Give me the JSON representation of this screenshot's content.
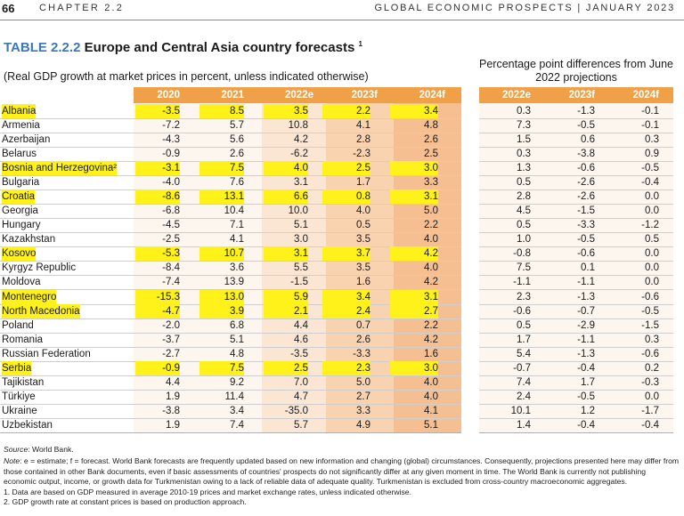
{
  "header": {
    "page_number": "66",
    "chapter": "CHAPTER 2.2",
    "publication": "GLOBAL ECONOMIC PROSPECTS | JANUARY 2023"
  },
  "table": {
    "label": "TABLE 2.2.2",
    "title": "Europe and Central Asia country forecasts",
    "title_footnote": "1",
    "subtitle": "(Real GDP growth at market prices in percent, unless indicated otherwise)",
    "diff_title": "Percentage point differences from June 2022 projections",
    "columns": [
      "2020",
      "2021",
      "2022e",
      "2023f",
      "2024f"
    ],
    "diff_columns": [
      "2022e",
      "2023f",
      "2024f"
    ],
    "highlight_color": "#fff11a",
    "rows": [
      {
        "country": "Albania",
        "values": [
          "-3.5",
          "8.5",
          "3.5",
          "2.2",
          "3.4"
        ],
        "diff": [
          "0.3",
          "-1.3",
          "-0.1"
        ],
        "highlighted": true
      },
      {
        "country": "Armenia",
        "values": [
          "-7.2",
          "5.7",
          "10.8",
          "4.1",
          "4.8"
        ],
        "diff": [
          "7.3",
          "-0.5",
          "-0.1"
        ],
        "highlighted": false
      },
      {
        "country": "Azerbaijan",
        "values": [
          "-4.3",
          "5.6",
          "4.2",
          "2.8",
          "2.6"
        ],
        "diff": [
          "1.5",
          "0.6",
          "0.3"
        ],
        "highlighted": false
      },
      {
        "country": "Belarus",
        "values": [
          "-0.9",
          "2.6",
          "-6.2",
          "-2.3",
          "2.5"
        ],
        "diff": [
          "0.3",
          "-3.8",
          "0.9"
        ],
        "highlighted": false
      },
      {
        "country": "Bosnia and Herzegovina²",
        "values": [
          "-3.1",
          "7.5",
          "4.0",
          "2.5",
          "3.0"
        ],
        "diff": [
          "1.3",
          "-0.6",
          "-0.5"
        ],
        "highlighted": true
      },
      {
        "country": "Bulgaria",
        "values": [
          "-4.0",
          "7.6",
          "3.1",
          "1.7",
          "3.3"
        ],
        "diff": [
          "0.5",
          "-2.6",
          "-0.4"
        ],
        "highlighted": false
      },
      {
        "country": "Croatia",
        "values": [
          "-8.6",
          "13.1",
          "6.6",
          "0.8",
          "3.1"
        ],
        "diff": [
          "2.8",
          "-2.6",
          "0.0"
        ],
        "highlighted": true
      },
      {
        "country": "Georgia",
        "values": [
          "-6.8",
          "10.4",
          "10.0",
          "4.0",
          "5.0"
        ],
        "diff": [
          "4.5",
          "-1.5",
          "0.0"
        ],
        "highlighted": false
      },
      {
        "country": "Hungary",
        "values": [
          "-4.5",
          "7.1",
          "5.1",
          "0.5",
          "2.2"
        ],
        "diff": [
          "0.5",
          "-3.3",
          "-1.2"
        ],
        "highlighted": false
      },
      {
        "country": "Kazakhstan",
        "values": [
          "-2.5",
          "4.1",
          "3.0",
          "3.5",
          "4.0"
        ],
        "diff": [
          "1.0",
          "-0.5",
          "0.5"
        ],
        "highlighted": false
      },
      {
        "country": "Kosovo",
        "values": [
          "-5.3",
          "10.7",
          "3.1",
          "3.7",
          "4.2"
        ],
        "diff": [
          "-0.8",
          "-0.6",
          "0.0"
        ],
        "highlighted": true
      },
      {
        "country": "Kyrgyz Republic",
        "values": [
          "-8.4",
          "3.6",
          "5.5",
          "3.5",
          "4.0"
        ],
        "diff": [
          "7.5",
          "0.1",
          "0.0"
        ],
        "highlighted": false
      },
      {
        "country": "Moldova",
        "values": [
          "-7.4",
          "13.9",
          "-1.5",
          "1.6",
          "4.2"
        ],
        "diff": [
          "-1.1",
          "-1.1",
          "0.0"
        ],
        "highlighted": false
      },
      {
        "country": "Montenegro",
        "values": [
          "-15.3",
          "13.0",
          "5.9",
          "3.4",
          "3.1"
        ],
        "diff": [
          "2.3",
          "-1.3",
          "-0.6"
        ],
        "highlighted": true
      },
      {
        "country": "North Macedonia",
        "values": [
          "-4.7",
          "3.9",
          "2.1",
          "2.4",
          "2.7"
        ],
        "diff": [
          "-0.6",
          "-0.7",
          "-0.5"
        ],
        "highlighted": true
      },
      {
        "country": "Poland",
        "values": [
          "-2.0",
          "6.8",
          "4.4",
          "0.7",
          "2.2"
        ],
        "diff": [
          "0.5",
          "-2.9",
          "-1.5"
        ],
        "highlighted": false
      },
      {
        "country": "Romania",
        "values": [
          "-3.7",
          "5.1",
          "4.6",
          "2.6",
          "4.2"
        ],
        "diff": [
          "1.7",
          "-1.1",
          "0.3"
        ],
        "highlighted": false
      },
      {
        "country": "Russian Federation",
        "values": [
          "-2.7",
          "4.8",
          "-3.5",
          "-3.3",
          "1.6"
        ],
        "diff": [
          "5.4",
          "-1.3",
          "-0.6"
        ],
        "highlighted": false
      },
      {
        "country": "Serbia",
        "values": [
          "-0.9",
          "7.5",
          "2.5",
          "2.3",
          "3.0"
        ],
        "diff": [
          "-0.7",
          "-0.4",
          "0.2"
        ],
        "highlighted": true
      },
      {
        "country": "Tajikistan",
        "values": [
          "4.4",
          "9.2",
          "7.0",
          "5.0",
          "4.0"
        ],
        "diff": [
          "7.4",
          "1.7",
          "-0.3"
        ],
        "highlighted": false
      },
      {
        "country": "Türkiye",
        "values": [
          "1.9",
          "11.4",
          "4.7",
          "2.7",
          "4.0"
        ],
        "diff": [
          "2.4",
          "-0.5",
          "0.0"
        ],
        "highlighted": false
      },
      {
        "country": "Ukraine",
        "values": [
          "-3.8",
          "3.4",
          "-35.0",
          "3.3",
          "4.1"
        ],
        "diff": [
          "10.1",
          "1.2",
          "-1.7"
        ],
        "highlighted": false
      },
      {
        "country": "Uzbekistan",
        "values": [
          "1.9",
          "7.4",
          "5.7",
          "4.9",
          "5.1"
        ],
        "diff": [
          "1.4",
          "-0.4",
          "-0.4"
        ],
        "highlighted": false
      }
    ]
  },
  "notes": {
    "source_label": "Source",
    "source_text": ": World Bank.",
    "note_label": "Note",
    "note_text": ": e = estimate; f = forecast. World Bank forecasts are frequently updated based on new information and changing (global) circumstances. Consequently, projections presented here may differ from those contained in other Bank documents, even if basic assessments of countries' prospects do not significantly differ at any given moment in time. The World Bank is currently not publishing economic output, income, or growth data for Turkmenistan owing to a lack of reliable data of adequate quality. Turkmenistan is excluded from cross-country macroeconomic aggregates.",
    "footnotes": [
      "1. Data are based on GDP measured in average 2010-19 prices and market exchange rates, unless indicated otherwise.",
      "2. GDP growth rate at constant prices is based on production approach."
    ]
  }
}
